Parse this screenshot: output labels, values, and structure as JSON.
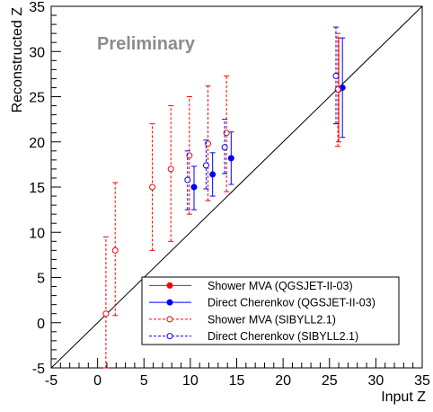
{
  "chart_data": {
    "type": "scatter",
    "title": "",
    "xlabel": "Input Z",
    "ylabel": "Reconstructed Z",
    "xlim": [
      -5,
      35
    ],
    "ylim": [
      -5,
      35
    ],
    "x_ticks": [
      "-5",
      "0",
      "5",
      "10",
      "15",
      "20",
      "25",
      "30",
      "35"
    ],
    "y_ticks": [
      "-5",
      "0",
      "5",
      "10",
      "15",
      "20",
      "25",
      "30",
      "35"
    ],
    "grid": false,
    "annotation": "Preliminary",
    "reference_line": {
      "from": [
        -5,
        -5
      ],
      "to": [
        35,
        35
      ]
    },
    "legend_position": "bottom-right",
    "series": [
      {
        "name": "Shower MVA (QGSJET-II-03)",
        "color": "#ff0000",
        "marker": "filled-circle",
        "line_style": "solid",
        "points": [
          {
            "x": 26.0,
            "y": 25.8,
            "ylow": 20.0,
            "yhigh": 31.5
          }
        ]
      },
      {
        "name": "Direct Cherenkov (QGSJET-II-03)",
        "color": "#0000ff",
        "marker": "filled-circle",
        "line_style": "solid",
        "points": [
          {
            "x": 10.4,
            "y": 15.0,
            "ylow": 12.5,
            "yhigh": 17.3
          },
          {
            "x": 12.4,
            "y": 16.4,
            "ylow": 14.0,
            "yhigh": 18.8
          },
          {
            "x": 14.4,
            "y": 18.2,
            "ylow": 15.3,
            "yhigh": 21.1
          },
          {
            "x": 26.4,
            "y": 26.0,
            "ylow": 20.5,
            "yhigh": 31.5
          }
        ]
      },
      {
        "name": "Shower MVA (SIBYLL2.1)",
        "color": "#ff0000",
        "marker": "open-circle",
        "line_style": "dashed",
        "points": [
          {
            "x": 0.9,
            "y": 1.0,
            "ylow": -5.0,
            "yhigh": 9.5
          },
          {
            "x": 1.9,
            "y": 8.0,
            "ylow": 0.8,
            "yhigh": 15.5
          },
          {
            "x": 5.9,
            "y": 15.0,
            "ylow": 8.0,
            "yhigh": 22.0
          },
          {
            "x": 7.9,
            "y": 17.0,
            "ylow": 9.0,
            "yhigh": 24.0
          },
          {
            "x": 9.9,
            "y": 18.5,
            "ylow": 12.0,
            "yhigh": 25.0
          },
          {
            "x": 11.9,
            "y": 19.8,
            "ylow": 13.5,
            "yhigh": 26.2
          },
          {
            "x": 13.9,
            "y": 21.0,
            "ylow": 14.5,
            "yhigh": 27.3
          },
          {
            "x": 25.9,
            "y": 25.8,
            "ylow": 19.5,
            "yhigh": 32.0
          }
        ]
      },
      {
        "name": "Direct Cherenkov (SIBYLL2.1)",
        "color": "#0000ff",
        "marker": "open-circle",
        "line_style": "dashed",
        "points": [
          {
            "x": 9.7,
            "y": 15.8,
            "ylow": 12.5,
            "yhigh": 19.0
          },
          {
            "x": 11.7,
            "y": 17.4,
            "ylow": 14.8,
            "yhigh": 20.2
          },
          {
            "x": 13.7,
            "y": 19.4,
            "ylow": 16.5,
            "yhigh": 22.5
          },
          {
            "x": 25.7,
            "y": 27.3,
            "ylow": 22.0,
            "yhigh": 32.7
          }
        ]
      }
    ]
  }
}
